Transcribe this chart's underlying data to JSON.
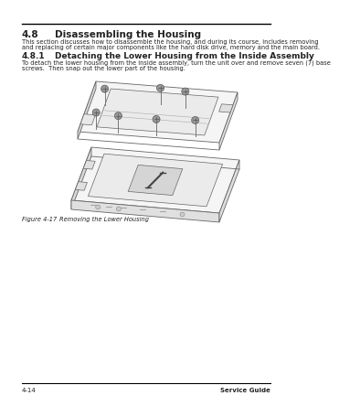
{
  "page_bg": "#ffffff",
  "title_section": "4.8",
  "title_text": "Disassembling the Housing",
  "body_text_1a": "This section discusses how to disassemble the housing, and during its course, includes removing",
  "body_text_1b": "and replacing of certain major components like the hard disk drive, memory and the main board.",
  "subtitle_section": "4.8.1",
  "subtitle_text": "Detaching the Lower Housing from the Inside Assembly",
  "body_text_2a": "To detach the lower housing from the inside assembly, turn the unit over and remove seven (7) base",
  "body_text_2b": "screws.  Then snap out the lower part of the housing.",
  "figure_label": "Figure 4-17",
  "figure_desc": "    Removing the Lower Housing",
  "footer_left": "4-14",
  "footer_right": "Service Guide",
  "line_color": "#333333",
  "title_font_size": 7.5,
  "subtitle_font_size": 6.5,
  "body_font_size": 4.8,
  "caption_font_size": 4.8,
  "footer_font_size": 5.0,
  "diagram_color_face": "#f5f5f5",
  "diagram_color_edge": "#666666",
  "diagram_color_side": "#d8d8d8",
  "diagram_color_inner": "#ebebeb",
  "screw_color": "#999999",
  "screw_edge": "#555555"
}
